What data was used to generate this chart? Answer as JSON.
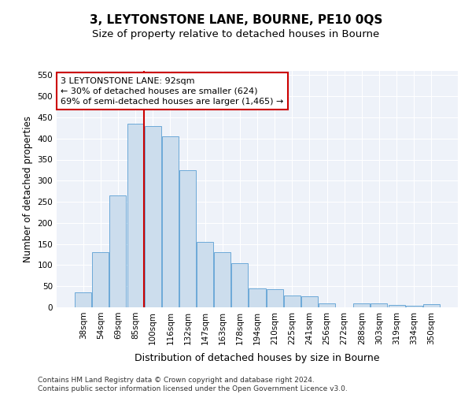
{
  "title": "3, LEYTONSTONE LANE, BOURNE, PE10 0QS",
  "subtitle": "Size of property relative to detached houses in Bourne",
  "xlabel": "Distribution of detached houses by size in Bourne",
  "ylabel": "Number of detached properties",
  "categories": [
    "38sqm",
    "54sqm",
    "69sqm",
    "85sqm",
    "100sqm",
    "116sqm",
    "132sqm",
    "147sqm",
    "163sqm",
    "178sqm",
    "194sqm",
    "210sqm",
    "225sqm",
    "241sqm",
    "256sqm",
    "272sqm",
    "288sqm",
    "303sqm",
    "319sqm",
    "334sqm",
    "350sqm"
  ],
  "values": [
    35,
    130,
    265,
    435,
    430,
    405,
    325,
    155,
    130,
    105,
    45,
    43,
    28,
    27,
    10,
    0,
    10,
    10,
    5,
    4,
    8
  ],
  "bar_color": "#ccdded",
  "bar_edge_color": "#5a9fd4",
  "vline_x": 3.5,
  "vline_color": "#cc0000",
  "annotation_text": "3 LEYTONSTONE LANE: 92sqm\n← 30% of detached houses are smaller (624)\n69% of semi-detached houses are larger (1,465) →",
  "annotation_box_color": "#ffffff",
  "annotation_box_edge": "#cc0000",
  "ylim": [
    0,
    560
  ],
  "yticks": [
    0,
    50,
    100,
    150,
    200,
    250,
    300,
    350,
    400,
    450,
    500,
    550
  ],
  "bg_color": "#eef2f9",
  "footer": "Contains HM Land Registry data © Crown copyright and database right 2024.\nContains public sector information licensed under the Open Government Licence v3.0.",
  "title_fontsize": 11,
  "subtitle_fontsize": 9.5,
  "xlabel_fontsize": 9,
  "ylabel_fontsize": 8.5,
  "tick_fontsize": 7.5,
  "footer_fontsize": 6.5,
  "annotation_fontsize": 8
}
